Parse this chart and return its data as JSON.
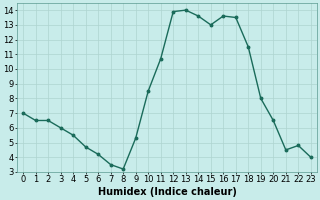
{
  "x": [
    0,
    1,
    2,
    3,
    4,
    5,
    6,
    7,
    8,
    9,
    10,
    11,
    12,
    13,
    14,
    15,
    16,
    17,
    18,
    19,
    20,
    21,
    22,
    23
  ],
  "y": [
    7,
    6.5,
    6.5,
    6,
    5.5,
    4.7,
    4.2,
    3.5,
    3.2,
    5.3,
    8.5,
    10.7,
    13.9,
    14.0,
    13.6,
    13.0,
    13.6,
    13.5,
    11.5,
    8.0,
    6.5,
    4.5,
    4.8,
    4.0
  ],
  "line_color": "#1a6b5a",
  "marker": "o",
  "marker_size": 1.8,
  "bg_color": "#c8ecea",
  "grid_color": "#aed4d0",
  "xlabel": "Humidex (Indice chaleur)",
  "ylim": [
    3,
    14.5
  ],
  "xlim": [
    -0.5,
    23.5
  ],
  "yticks": [
    3,
    4,
    5,
    6,
    7,
    8,
    9,
    10,
    11,
    12,
    13,
    14
  ],
  "xticks": [
    0,
    1,
    2,
    3,
    4,
    5,
    6,
    7,
    8,
    9,
    10,
    11,
    12,
    13,
    14,
    15,
    16,
    17,
    18,
    19,
    20,
    21,
    22,
    23
  ],
  "xtick_labels": [
    "0",
    "1",
    "2",
    "3",
    "4",
    "5",
    "6",
    "7",
    "8",
    "9",
    "10",
    "11",
    "12",
    "13",
    "14",
    "15",
    "16",
    "17",
    "18",
    "19",
    "20",
    "21",
    "22",
    "23"
  ],
  "xlabel_fontsize": 7,
  "tick_fontsize": 6,
  "linewidth": 1.0
}
